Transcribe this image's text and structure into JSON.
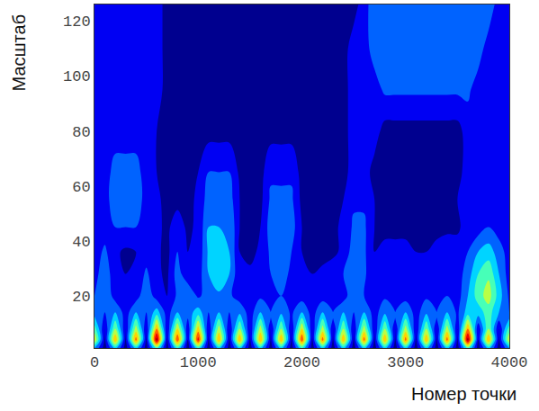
{
  "chart_data": {
    "type": "contour",
    "x_label": "Номер точки",
    "y_label": "Масштаб",
    "xlim": [
      0,
      4000
    ],
    "ylim": [
      1,
      126
    ],
    "xticks": [
      0,
      1000,
      2000,
      3000,
      4000
    ],
    "yticks": [
      20,
      40,
      60,
      80,
      100,
      120
    ],
    "x": [
      0,
      100,
      200,
      300,
      400,
      500,
      600,
      700,
      800,
      900,
      1000,
      1100,
      1200,
      1300,
      1400,
      1500,
      1600,
      1700,
      1800,
      1900,
      2000,
      2100,
      2200,
      2300,
      2400,
      2500,
      2600,
      2700,
      2800,
      2900,
      3000,
      3100,
      3200,
      3300,
      3400,
      3500,
      3600,
      3700,
      3800,
      3900,
      4000
    ],
    "y": [
      1,
      4,
      8,
      14,
      20,
      28,
      36,
      45,
      55,
      65,
      80,
      95,
      110,
      126
    ],
    "z": [
      [
        0.3,
        0.05,
        0.35,
        0.05,
        0.35,
        0.05,
        0.45,
        0.05,
        0.4,
        0.05,
        0.4,
        0.05,
        0.35,
        0.05,
        0.35,
        0.05,
        0.35,
        0.05,
        0.35,
        0.05,
        0.4,
        0.05,
        0.35,
        0.05,
        0.35,
        0.05,
        0.35,
        0.05,
        0.35,
        0.05,
        0.35,
        0.05,
        0.35,
        0.05,
        0.35,
        0.05,
        0.45,
        0.05,
        0.35,
        0.05,
        0.3
      ],
      [
        0.6,
        0.08,
        0.7,
        0.08,
        0.75,
        0.08,
        0.95,
        0.08,
        0.8,
        0.1,
        0.85,
        0.08,
        0.7,
        0.08,
        0.7,
        0.08,
        0.7,
        0.08,
        0.7,
        0.08,
        0.8,
        0.08,
        0.75,
        0.08,
        0.7,
        0.08,
        0.75,
        0.08,
        0.7,
        0.08,
        0.75,
        0.08,
        0.7,
        0.08,
        0.75,
        0.08,
        0.95,
        0.1,
        0.7,
        0.08,
        0.6
      ],
      [
        0.45,
        0.1,
        0.5,
        0.1,
        0.55,
        0.1,
        0.7,
        0.1,
        0.6,
        0.12,
        0.65,
        0.1,
        0.55,
        0.1,
        0.5,
        0.1,
        0.55,
        0.1,
        0.5,
        0.1,
        0.6,
        0.1,
        0.55,
        0.1,
        0.5,
        0.1,
        0.55,
        0.1,
        0.5,
        0.1,
        0.55,
        0.1,
        0.5,
        0.1,
        0.55,
        0.1,
        0.7,
        0.12,
        0.5,
        0.1,
        0.45
      ],
      [
        0.25,
        0.2,
        0.3,
        0.15,
        0.3,
        0.2,
        0.35,
        0.15,
        0.3,
        0.25,
        0.35,
        0.2,
        0.3,
        0.2,
        0.28,
        0.15,
        0.3,
        0.2,
        0.28,
        0.18,
        0.3,
        0.15,
        0.3,
        0.2,
        0.3,
        0.2,
        0.3,
        0.15,
        0.28,
        0.2,
        0.3,
        0.15,
        0.28,
        0.2,
        0.3,
        0.18,
        0.35,
        0.35,
        0.45,
        0.3,
        0.2
      ],
      [
        0.2,
        0.3,
        0.15,
        0.12,
        0.15,
        0.28,
        0.15,
        0.1,
        0.22,
        0.3,
        0.18,
        0.25,
        0.28,
        0.22,
        0.15,
        0.2,
        0.18,
        0.15,
        0.2,
        0.18,
        0.15,
        0.12,
        0.15,
        0.18,
        0.15,
        0.28,
        0.2,
        0.15,
        0.18,
        0.2,
        0.15,
        0.15,
        0.18,
        0.15,
        0.2,
        0.15,
        0.3,
        0.45,
        0.55,
        0.35,
        0.18
      ],
      [
        0.15,
        0.28,
        0.12,
        0.1,
        0.12,
        0.22,
        0.12,
        0.08,
        0.25,
        0.12,
        0.15,
        0.3,
        0.38,
        0.3,
        0.12,
        0.12,
        0.18,
        0.2,
        0.24,
        0.18,
        0.12,
        0.1,
        0.12,
        0.15,
        0.2,
        0.3,
        0.22,
        0.12,
        0.15,
        0.18,
        0.15,
        0.12,
        0.15,
        0.15,
        0.18,
        0.15,
        0.25,
        0.4,
        0.48,
        0.3,
        0.15
      ],
      [
        0.15,
        0.22,
        0.12,
        0.08,
        0.1,
        0.15,
        0.12,
        0.07,
        0.2,
        0.1,
        0.12,
        0.32,
        0.36,
        0.3,
        0.1,
        0.07,
        0.12,
        0.22,
        0.27,
        0.2,
        0.1,
        0.07,
        0.07,
        0.08,
        0.12,
        0.26,
        0.22,
        0.1,
        0.12,
        0.12,
        0.12,
        0.1,
        0.1,
        0.12,
        0.15,
        0.15,
        0.2,
        0.3,
        0.35,
        0.25,
        0.15
      ],
      [
        0.15,
        0.15,
        0.2,
        0.2,
        0.2,
        0.12,
        0.12,
        0.08,
        0.15,
        0.08,
        0.12,
        0.3,
        0.3,
        0.3,
        0.1,
        0.08,
        0.1,
        0.25,
        0.25,
        0.25,
        0.1,
        0.06,
        0.06,
        0.08,
        0.12,
        0.22,
        0.22,
        0.1,
        0.08,
        0.08,
        0.08,
        0.08,
        0.08,
        0.08,
        0.08,
        0.08,
        0.15,
        0.15,
        0.2,
        0.15,
        0.15
      ],
      [
        0.15,
        0.15,
        0.27,
        0.28,
        0.27,
        0.15,
        0.12,
        0.07,
        0.07,
        0.07,
        0.12,
        0.25,
        0.25,
        0.25,
        0.1,
        0.07,
        0.07,
        0.22,
        0.22,
        0.22,
        0.07,
        0.07,
        0.07,
        0.07,
        0.1,
        0.18,
        0.18,
        0.1,
        0.06,
        0.06,
        0.06,
        0.06,
        0.06,
        0.06,
        0.06,
        0.1,
        0.15,
        0.15,
        0.15,
        0.15,
        0.15
      ],
      [
        0.15,
        0.15,
        0.24,
        0.24,
        0.24,
        0.15,
        0.1,
        0.06,
        0.06,
        0.06,
        0.1,
        0.2,
        0.2,
        0.2,
        0.08,
        0.06,
        0.06,
        0.18,
        0.18,
        0.18,
        0.06,
        0.06,
        0.06,
        0.06,
        0.06,
        0.15,
        0.15,
        0.06,
        0.06,
        0.06,
        0.06,
        0.06,
        0.06,
        0.06,
        0.06,
        0.06,
        0.15,
        0.15,
        0.15,
        0.15,
        0.15
      ],
      [
        0.15,
        0.15,
        0.15,
        0.15,
        0.15,
        0.15,
        0.1,
        0.06,
        0.06,
        0.06,
        0.06,
        0.06,
        0.06,
        0.06,
        0.06,
        0.06,
        0.06,
        0.06,
        0.06,
        0.06,
        0.06,
        0.06,
        0.06,
        0.06,
        0.06,
        0.15,
        0.15,
        0.15,
        0.06,
        0.06,
        0.06,
        0.06,
        0.06,
        0.06,
        0.06,
        0.06,
        0.15,
        0.15,
        0.15,
        0.15,
        0.15
      ],
      [
        0.15,
        0.15,
        0.15,
        0.15,
        0.15,
        0.15,
        0.15,
        0.06,
        0.06,
        0.06,
        0.06,
        0.06,
        0.06,
        0.06,
        0.06,
        0.06,
        0.06,
        0.06,
        0.06,
        0.06,
        0.06,
        0.06,
        0.06,
        0.06,
        0.06,
        0.15,
        0.15,
        0.15,
        0.22,
        0.22,
        0.22,
        0.22,
        0.22,
        0.22,
        0.22,
        0.22,
        0.22,
        0.15,
        0.15,
        0.15,
        0.15
      ],
      [
        0.15,
        0.15,
        0.15,
        0.15,
        0.15,
        0.15,
        0.15,
        0.06,
        0.06,
        0.06,
        0.06,
        0.06,
        0.06,
        0.06,
        0.06,
        0.06,
        0.06,
        0.06,
        0.06,
        0.06,
        0.06,
        0.06,
        0.06,
        0.06,
        0.06,
        0.15,
        0.15,
        0.25,
        0.25,
        0.25,
        0.25,
        0.25,
        0.25,
        0.25,
        0.25,
        0.25,
        0.25,
        0.25,
        0.15,
        0.15,
        0.15
      ],
      [
        0.15,
        0.15,
        0.15,
        0.15,
        0.15,
        0.15,
        0.15,
        0.06,
        0.06,
        0.06,
        0.06,
        0.06,
        0.06,
        0.06,
        0.06,
        0.06,
        0.06,
        0.06,
        0.06,
        0.06,
        0.06,
        0.06,
        0.06,
        0.06,
        0.06,
        0.06,
        0.15,
        0.27,
        0.27,
        0.27,
        0.27,
        0.27,
        0.27,
        0.27,
        0.27,
        0.27,
        0.27,
        0.27,
        0.27,
        0.15,
        0.15
      ]
    ]
  }
}
